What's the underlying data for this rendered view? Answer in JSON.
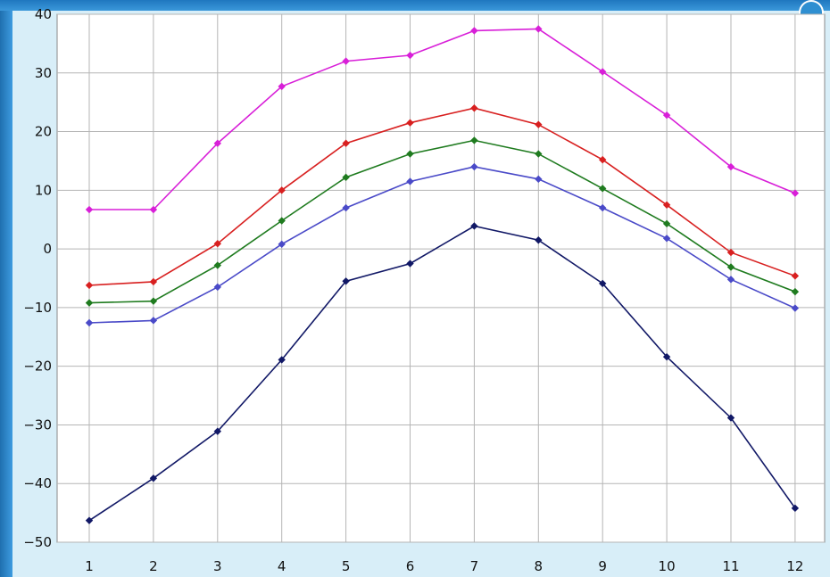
{
  "chart_data": {
    "type": "line",
    "title": "",
    "xlabel": "",
    "ylabel": "",
    "x": [
      1,
      2,
      3,
      4,
      5,
      6,
      7,
      8,
      9,
      10,
      11,
      12
    ],
    "x_tick_labels": [
      "1",
      "2",
      "3",
      "4",
      "5",
      "6",
      "7",
      "8",
      "9",
      "10",
      "11",
      "12"
    ],
    "ylim": [
      -50,
      40
    ],
    "y_tick_labels": [
      "40",
      "30",
      "20",
      "10",
      "0",
      "−10",
      "−20",
      "−30",
      "−40",
      "−50"
    ],
    "grid": true,
    "series": [
      {
        "color": "#d81fd8",
        "values": [
          6.7,
          6.7,
          18,
          27.7,
          32,
          33,
          37.2,
          37.5,
          30.2,
          22.8,
          14,
          9.5
        ]
      },
      {
        "color": "#d82020",
        "values": [
          -6.2,
          -5.6,
          0.9,
          10,
          18,
          21.5,
          24,
          21.2,
          15.2,
          7.5,
          -0.6,
          -4.6
        ]
      },
      {
        "color": "#1f7b1f",
        "values": [
          -9.2,
          -8.9,
          -2.8,
          4.8,
          12.2,
          16.2,
          18.5,
          16.2,
          10.3,
          4.3,
          -3.1,
          -7.3
        ]
      },
      {
        "color": "#4a4ac8",
        "values": [
          -12.6,
          -12.2,
          -6.5,
          0.8,
          7,
          11.5,
          14,
          11.9,
          7,
          1.8,
          -5.2,
          -10.1
        ]
      },
      {
        "color": "#111866",
        "values": [
          -46.3,
          -39.1,
          -31.1,
          -18.9,
          -5.5,
          -2.5,
          3.9,
          1.5,
          -5.9,
          -18.4,
          -28.8,
          -44.2
        ]
      }
    ]
  }
}
